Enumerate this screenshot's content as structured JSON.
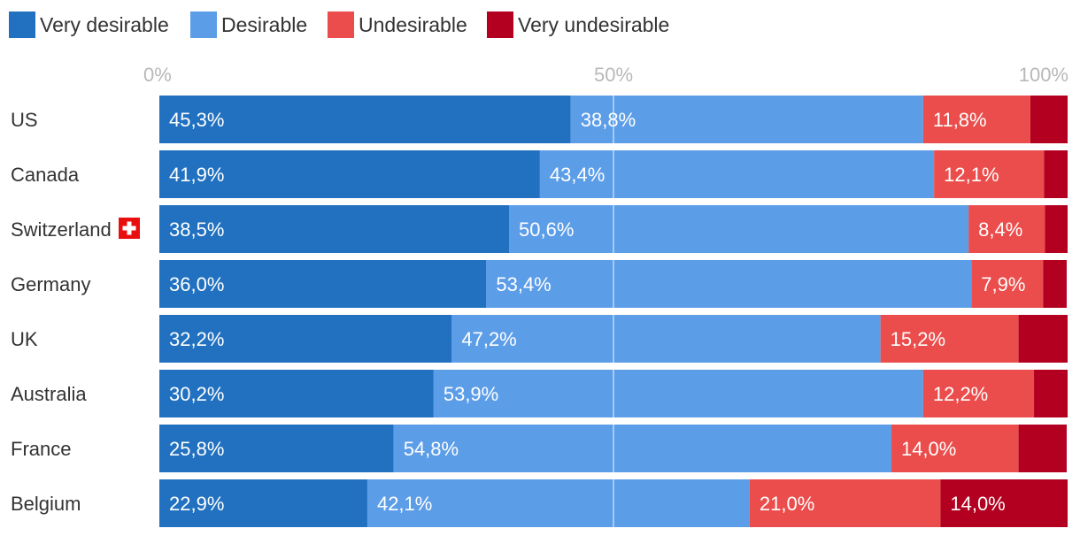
{
  "chart_data": {
    "type": "bar",
    "orientation": "horizontal",
    "stacked": true,
    "title": "",
    "xlabel": "",
    "ylabel": "",
    "xlim": [
      0,
      100
    ],
    "ticks": [
      "0%",
      "50%",
      "100%"
    ],
    "tick_values": [
      0,
      50,
      100
    ],
    "legend_position": "top-left",
    "flag_icon_category": "Switzerland",
    "categories": [
      "US",
      "Canada",
      "Switzerland",
      "Germany",
      "UK",
      "Australia",
      "France",
      "Belgium"
    ],
    "series": [
      {
        "name": "Very desirable",
        "color": "#2171c0",
        "values": [
          45.3,
          41.9,
          38.5,
          36.0,
          32.2,
          30.2,
          25.8,
          22.9
        ],
        "labels": [
          "45,3%",
          "41,9%",
          "38,5%",
          "36,0%",
          "32,2%",
          "30,2%",
          "25,8%",
          "22,9%"
        ]
      },
      {
        "name": "Desirable",
        "color": "#5c9de8",
        "values": [
          38.8,
          43.4,
          50.6,
          53.4,
          47.2,
          53.9,
          54.8,
          42.1
        ],
        "labels": [
          "38,8%",
          "43,4%",
          "50,6%",
          "53,4%",
          "47,2%",
          "53,9%",
          "54,8%",
          "42,1%"
        ]
      },
      {
        "name": "Undesirable",
        "color": "#ea4d4b",
        "values": [
          11.8,
          12.1,
          8.4,
          7.9,
          15.2,
          12.2,
          14.0,
          21.0
        ],
        "labels": [
          "11,8%",
          "12,1%",
          "8,4%",
          "7,9%",
          "15,2%",
          "12,2%",
          "14,0%",
          "21,0%"
        ]
      },
      {
        "name": "Very undesirable",
        "color": "#b30020",
        "values": [
          4.1,
          2.6,
          2.5,
          2.6,
          5.4,
          3.7,
          5.3,
          14.0
        ],
        "labels": [
          "",
          "",
          "",
          "",
          "",
          "",
          "",
          "14,0%"
        ]
      }
    ]
  }
}
